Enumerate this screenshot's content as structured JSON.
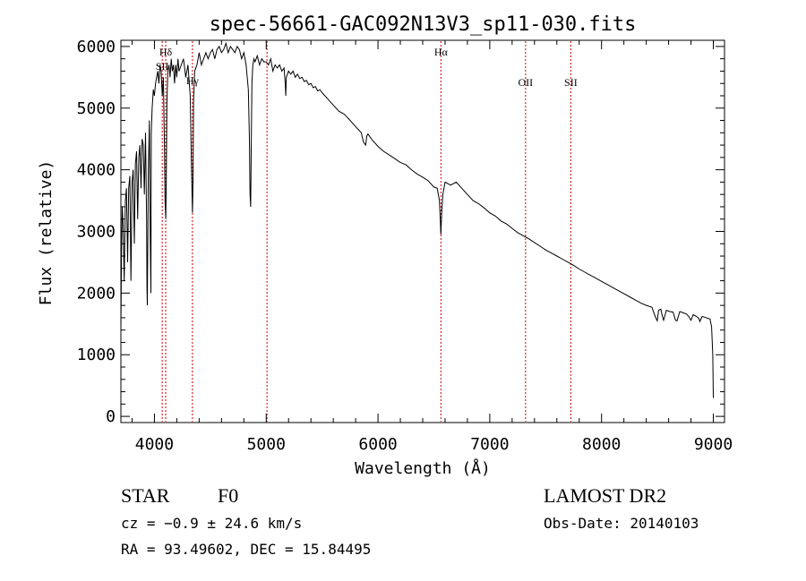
{
  "chart_data": {
    "type": "line",
    "title": "spec-56661-GAC092N13V3_sp11-030.fits",
    "xlabel": "Wavelength (Å)",
    "ylabel": "Flux (relative)",
    "xlim": [
      3700,
      9100
    ],
    "ylim": [
      -100,
      6100
    ],
    "x_ticks": [
      4000,
      5000,
      6000,
      7000,
      8000,
      9000
    ],
    "y_ticks": [
      0,
      1000,
      2000,
      3000,
      4000,
      5000,
      6000
    ],
    "grid": false,
    "line_color": "#000000",
    "marker_color": "#cc0000",
    "series": [
      {
        "x": [
          3700,
          3705,
          3712,
          3720,
          3730,
          3740,
          3750,
          3760,
          3770,
          3780,
          3790,
          3800,
          3810,
          3820,
          3830,
          3840,
          3850,
          3860,
          3870,
          3880,
          3890,
          3900,
          3910,
          3920,
          3930,
          3933,
          3936,
          3945,
          3955,
          3962,
          3968,
          3972,
          3980,
          3990,
          4000,
          4010,
          4020,
          4030,
          4040,
          4050,
          4060,
          4070,
          4080,
          4090,
          4095,
          4101,
          4106,
          4112,
          4120,
          4130,
          4140,
          4150,
          4160,
          4170,
          4180,
          4190,
          4200,
          4210,
          4220,
          4240,
          4260,
          4280,
          4300,
          4320,
          4330,
          4340,
          4345,
          4350,
          4360,
          4380,
          4400,
          4420,
          4440,
          4460,
          4480,
          4500,
          4520,
          4540,
          4560,
          4580,
          4600,
          4620,
          4640,
          4660,
          4680,
          4700,
          4720,
          4740,
          4760,
          4780,
          4800,
          4820,
          4840,
          4850,
          4855,
          4861,
          4866,
          4872,
          4880,
          4890,
          4900,
          4920,
          4940,
          4960,
          4980,
          5000,
          5020,
          5040,
          5060,
          5080,
          5100,
          5120,
          5140,
          5160,
          5170,
          5175,
          5180,
          5200,
          5220,
          5240,
          5260,
          5280,
          5300,
          5320,
          5340,
          5360,
          5380,
          5400,
          5420,
          5440,
          5460,
          5480,
          5500,
          5550,
          5600,
          5650,
          5700,
          5750,
          5800,
          5850,
          5870,
          5890,
          5900,
          5910,
          5950,
          6000,
          6050,
          6100,
          6150,
          6200,
          6250,
          6300,
          6350,
          6400,
          6450,
          6500,
          6530,
          6550,
          6557,
          6563,
          6570,
          6580,
          6600,
          6650,
          6700,
          6750,
          6800,
          6850,
          6900,
          6950,
          7000,
          7050,
          7100,
          7150,
          7200,
          7250,
          7300,
          7350,
          7400,
          7450,
          7500,
          7550,
          7600,
          7650,
          7700,
          7750,
          7800,
          7850,
          7900,
          7950,
          8000,
          8050,
          8100,
          8150,
          8200,
          8250,
          8300,
          8350,
          8400,
          8450,
          8480,
          8498,
          8510,
          8530,
          8542,
          8555,
          8580,
          8610,
          8640,
          8662,
          8675,
          8700,
          8730,
          8760,
          8780,
          8800,
          8820,
          8850,
          8870,
          8880,
          8900,
          8920,
          8950,
          8970,
          8985,
          8995,
          9000
        ],
        "y": [
          1400,
          2600,
          3400,
          3100,
          2200,
          3500,
          3700,
          2500,
          3700,
          3900,
          2200,
          3800,
          4000,
          2800,
          4100,
          4300,
          3200,
          4200,
          4400,
          3700,
          4500,
          4400,
          3600,
          4600,
          3200,
          2100,
          1800,
          3900,
          4800,
          3000,
          2000,
          4600,
          5000,
          5300,
          5200,
          5400,
          5500,
          5600,
          5400,
          5700,
          5600,
          5200,
          5500,
          4300,
          3500,
          3200,
          3900,
          5100,
          5600,
          5700,
          5500,
          5800,
          5600,
          5700,
          5400,
          5700,
          5500,
          5800,
          5600,
          5700,
          5800,
          5500,
          5700,
          5200,
          4200,
          3300,
          3800,
          5100,
          5600,
          5700,
          5900,
          5700,
          5800,
          5900,
          5800,
          5900,
          5950,
          5800,
          5950,
          6000,
          5900,
          5950,
          6050,
          5900,
          6000,
          5950,
          5900,
          6000,
          5950,
          5800,
          5900,
          5700,
          5300,
          4500,
          3600,
          3400,
          4300,
          5400,
          5700,
          5800,
          5750,
          5850,
          5700,
          5800,
          5750,
          5750,
          5700,
          5800,
          5600,
          5700,
          5650,
          5700,
          5600,
          5650,
          5400,
          5200,
          5500,
          5600,
          5550,
          5600,
          5500,
          5550,
          5480,
          5500,
          5430,
          5450,
          5380,
          5400,
          5330,
          5350,
          5280,
          5300,
          5250,
          5150,
          5050,
          4950,
          4900,
          4800,
          4700,
          4600,
          4450,
          4400,
          4550,
          4580,
          4480,
          4380,
          4300,
          4240,
          4180,
          4120,
          4080,
          4000,
          3930,
          3880,
          3820,
          3720,
          3700,
          3500,
          3200,
          2950,
          3300,
          3600,
          3800,
          3750,
          3800,
          3700,
          3600,
          3500,
          3450,
          3380,
          3300,
          3250,
          3170,
          3120,
          3050,
          2980,
          2930,
          2880,
          2820,
          2760,
          2700,
          2650,
          2600,
          2550,
          2500,
          2450,
          2390,
          2340,
          2290,
          2240,
          2190,
          2140,
          2090,
          2040,
          1990,
          1940,
          1890,
          1840,
          1800,
          1770,
          1620,
          1550,
          1720,
          1740,
          1640,
          1560,
          1720,
          1700,
          1690,
          1560,
          1550,
          1700,
          1680,
          1660,
          1620,
          1560,
          1650,
          1620,
          1590,
          1540,
          1620,
          1610,
          1590,
          1580,
          1450,
          1000,
          300
        ]
      }
    ],
    "line_markers": [
      {
        "x": 4101,
        "label": "Hδ"
      },
      {
        "x": 4070,
        "label": "SII"
      },
      {
        "x": 4340,
        "label": "Hγ"
      },
      {
        "x": 5007,
        "label": ""
      },
      {
        "x": 6563,
        "label": "Hα"
      },
      {
        "x": 7320,
        "label": "OII"
      },
      {
        "x": 7725,
        "label": "SII"
      }
    ]
  },
  "info": {
    "object_class": "STAR",
    "subclass": "F0",
    "survey": "LAMOST DR2",
    "cz": "cz = −0.9 ± 24.6 km/s",
    "obs_date": "Obs-Date: 20140103",
    "radec": "RA =  93.49602, DEC =  15.84495"
  }
}
